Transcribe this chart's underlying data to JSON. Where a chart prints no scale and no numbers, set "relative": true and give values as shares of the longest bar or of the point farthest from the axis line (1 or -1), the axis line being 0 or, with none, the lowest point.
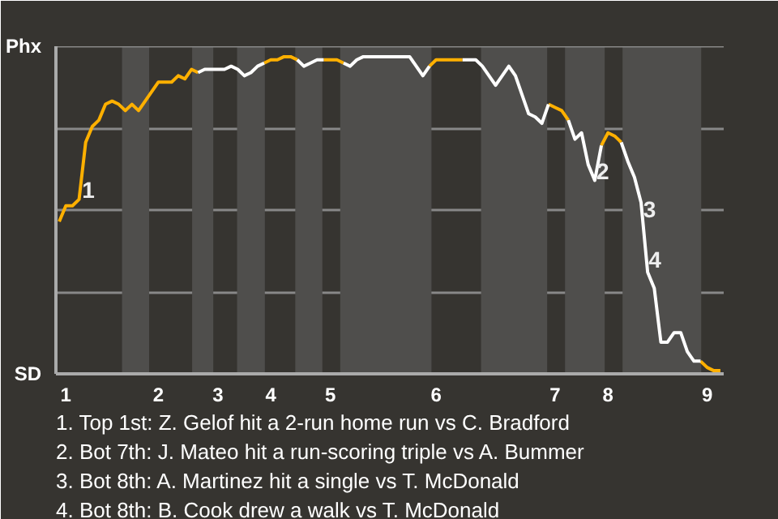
{
  "chart_data": {
    "type": "line",
    "relative": true,
    "categories": [
      null,
      "1",
      null,
      null,
      null,
      null,
      null,
      null,
      null,
      null,
      null,
      null,
      null,
      null,
      null,
      "2",
      null,
      null,
      null,
      null,
      null,
      null,
      null,
      null,
      "3",
      null,
      null,
      null,
      null,
      null,
      null,
      null,
      "4",
      null,
      null,
      null,
      null,
      null,
      null,
      null,
      null,
      "5",
      null,
      null,
      null,
      null,
      null,
      null,
      null,
      null,
      null,
      null,
      null,
      null,
      null,
      null,
      null,
      "6",
      null,
      null,
      null,
      null,
      null,
      null,
      null,
      null,
      null,
      null,
      null,
      null,
      null,
      null,
      null,
      null,
      null,
      "7",
      null,
      null,
      null,
      null,
      null,
      null,
      null,
      "8",
      null,
      null,
      null,
      null,
      null,
      null,
      null,
      null,
      null,
      null,
      null,
      null,
      null,
      null,
      "9",
      null,
      null
    ],
    "series": [
      {
        "color": "#ffb000",
        "values": [
          0.48,
          0.53,
          0.53,
          0.55,
          0.73,
          0.78,
          0.8,
          0.85,
          0.86,
          0.85,
          0.83,
          0.85,
          0.83,
          0.86,
          0.89,
          0.92,
          0.92,
          0.92,
          0.94,
          0.93,
          0.96,
          0.95,
          null,
          null,
          null,
          null,
          null,
          null,
          null,
          null,
          null,
          0.98,
          0.99,
          0.99,
          1,
          1,
          0.99,
          null,
          null,
          null,
          0.99,
          0.99,
          0.99,
          0.98,
          null,
          null,
          null,
          null,
          null,
          null,
          null,
          null,
          null,
          null,
          null,
          null,
          0.97,
          0.99,
          0.99,
          0.99,
          0.99,
          0.99,
          null,
          null,
          null,
          null,
          null,
          null,
          null,
          null,
          null,
          null,
          null,
          null,
          0.85,
          0.84,
          0.83,
          0.8,
          null,
          null,
          null,
          null,
          0.72,
          0.76,
          0.75,
          0.73,
          null,
          null,
          null,
          null,
          null,
          null,
          null,
          null,
          null,
          null,
          null,
          0.04,
          0.02,
          0.01,
          0.01
        ]
      },
      {
        "color": "#ffffff",
        "values": [
          null,
          null,
          null,
          null,
          null,
          null,
          null,
          null,
          null,
          null,
          null,
          null,
          null,
          null,
          null,
          null,
          null,
          null,
          null,
          null,
          null,
          0.95,
          0.96,
          0.96,
          0.96,
          0.96,
          0.97,
          0.96,
          0.94,
          0.95,
          0.97,
          0.98,
          null,
          null,
          null,
          null,
          null,
          null,
          null,
          null,
          null,
          null,
          null,
          0.98,
          0.97,
          0.99,
          1,
          1,
          1,
          1,
          1,
          1,
          1,
          1,
          0.97,
          0.94,
          0.97,
          null,
          null,
          null,
          null,
          0.99,
          0.99,
          0.99,
          0.97,
          0.94,
          0.91,
          0.94,
          0.97,
          0.94,
          0.88,
          0.82,
          0.81,
          0.79,
          0.85,
          null,
          null,
          0.8,
          0.74,
          0.76,
          0.66,
          0.61,
          0.72,
          null,
          null,
          0.73,
          0.67,
          0.62,
          0.54,
          0.32,
          0.27,
          0.1,
          0.1,
          0.13,
          0.13,
          0.07,
          0.04,
          0.04,
          null,
          null,
          null
        ]
      },
      {
        "color": "#fefefe",
        "values": [
          null,
          null,
          null,
          null,
          null,
          null,
          null,
          null,
          null,
          null,
          null,
          null,
          null,
          null,
          null,
          null,
          null,
          null,
          null,
          null,
          null,
          null,
          null,
          null,
          null,
          null,
          null,
          null,
          null,
          null,
          null,
          null,
          null,
          null,
          null,
          null,
          0.99,
          0.97,
          0.98,
          0.99,
          0.99,
          null,
          null,
          null,
          null,
          null,
          null,
          null,
          null,
          null,
          null,
          null,
          null,
          null,
          null,
          null,
          null,
          null,
          null,
          null,
          null,
          null,
          null,
          null,
          null,
          null,
          null,
          null,
          null,
          null,
          null,
          null,
          null,
          null,
          null,
          null,
          null,
          null,
          null,
          null,
          null,
          null,
          null,
          null,
          null,
          null,
          null,
          null,
          null,
          null,
          null,
          null,
          null,
          null,
          null,
          null,
          null,
          null,
          null,
          null,
          null
        ]
      }
    ],
    "grid": "y",
    "annotations": [
      "Phx",
      "SD",
      {
        "text": "1",
        "y": 0.58
      },
      {
        "text": "2",
        "y": 0.64
      },
      {
        "text": "3",
        "y": 0.52
      },
      {
        "text": "4",
        "y": 0.36
      },
      "1. Top 1st: Z. Gelof hit a 2-run home run vs C. Bradford",
      "2. Bot 7th: J. Mateo hit a run-scoring triple vs A. Bummer",
      "3. Bot 8th: A. Martinez hit a single vs T. McDonald",
      "4. Bot 8th: B. Cook drew a walk vs T. McDonald"
    ]
  }
}
